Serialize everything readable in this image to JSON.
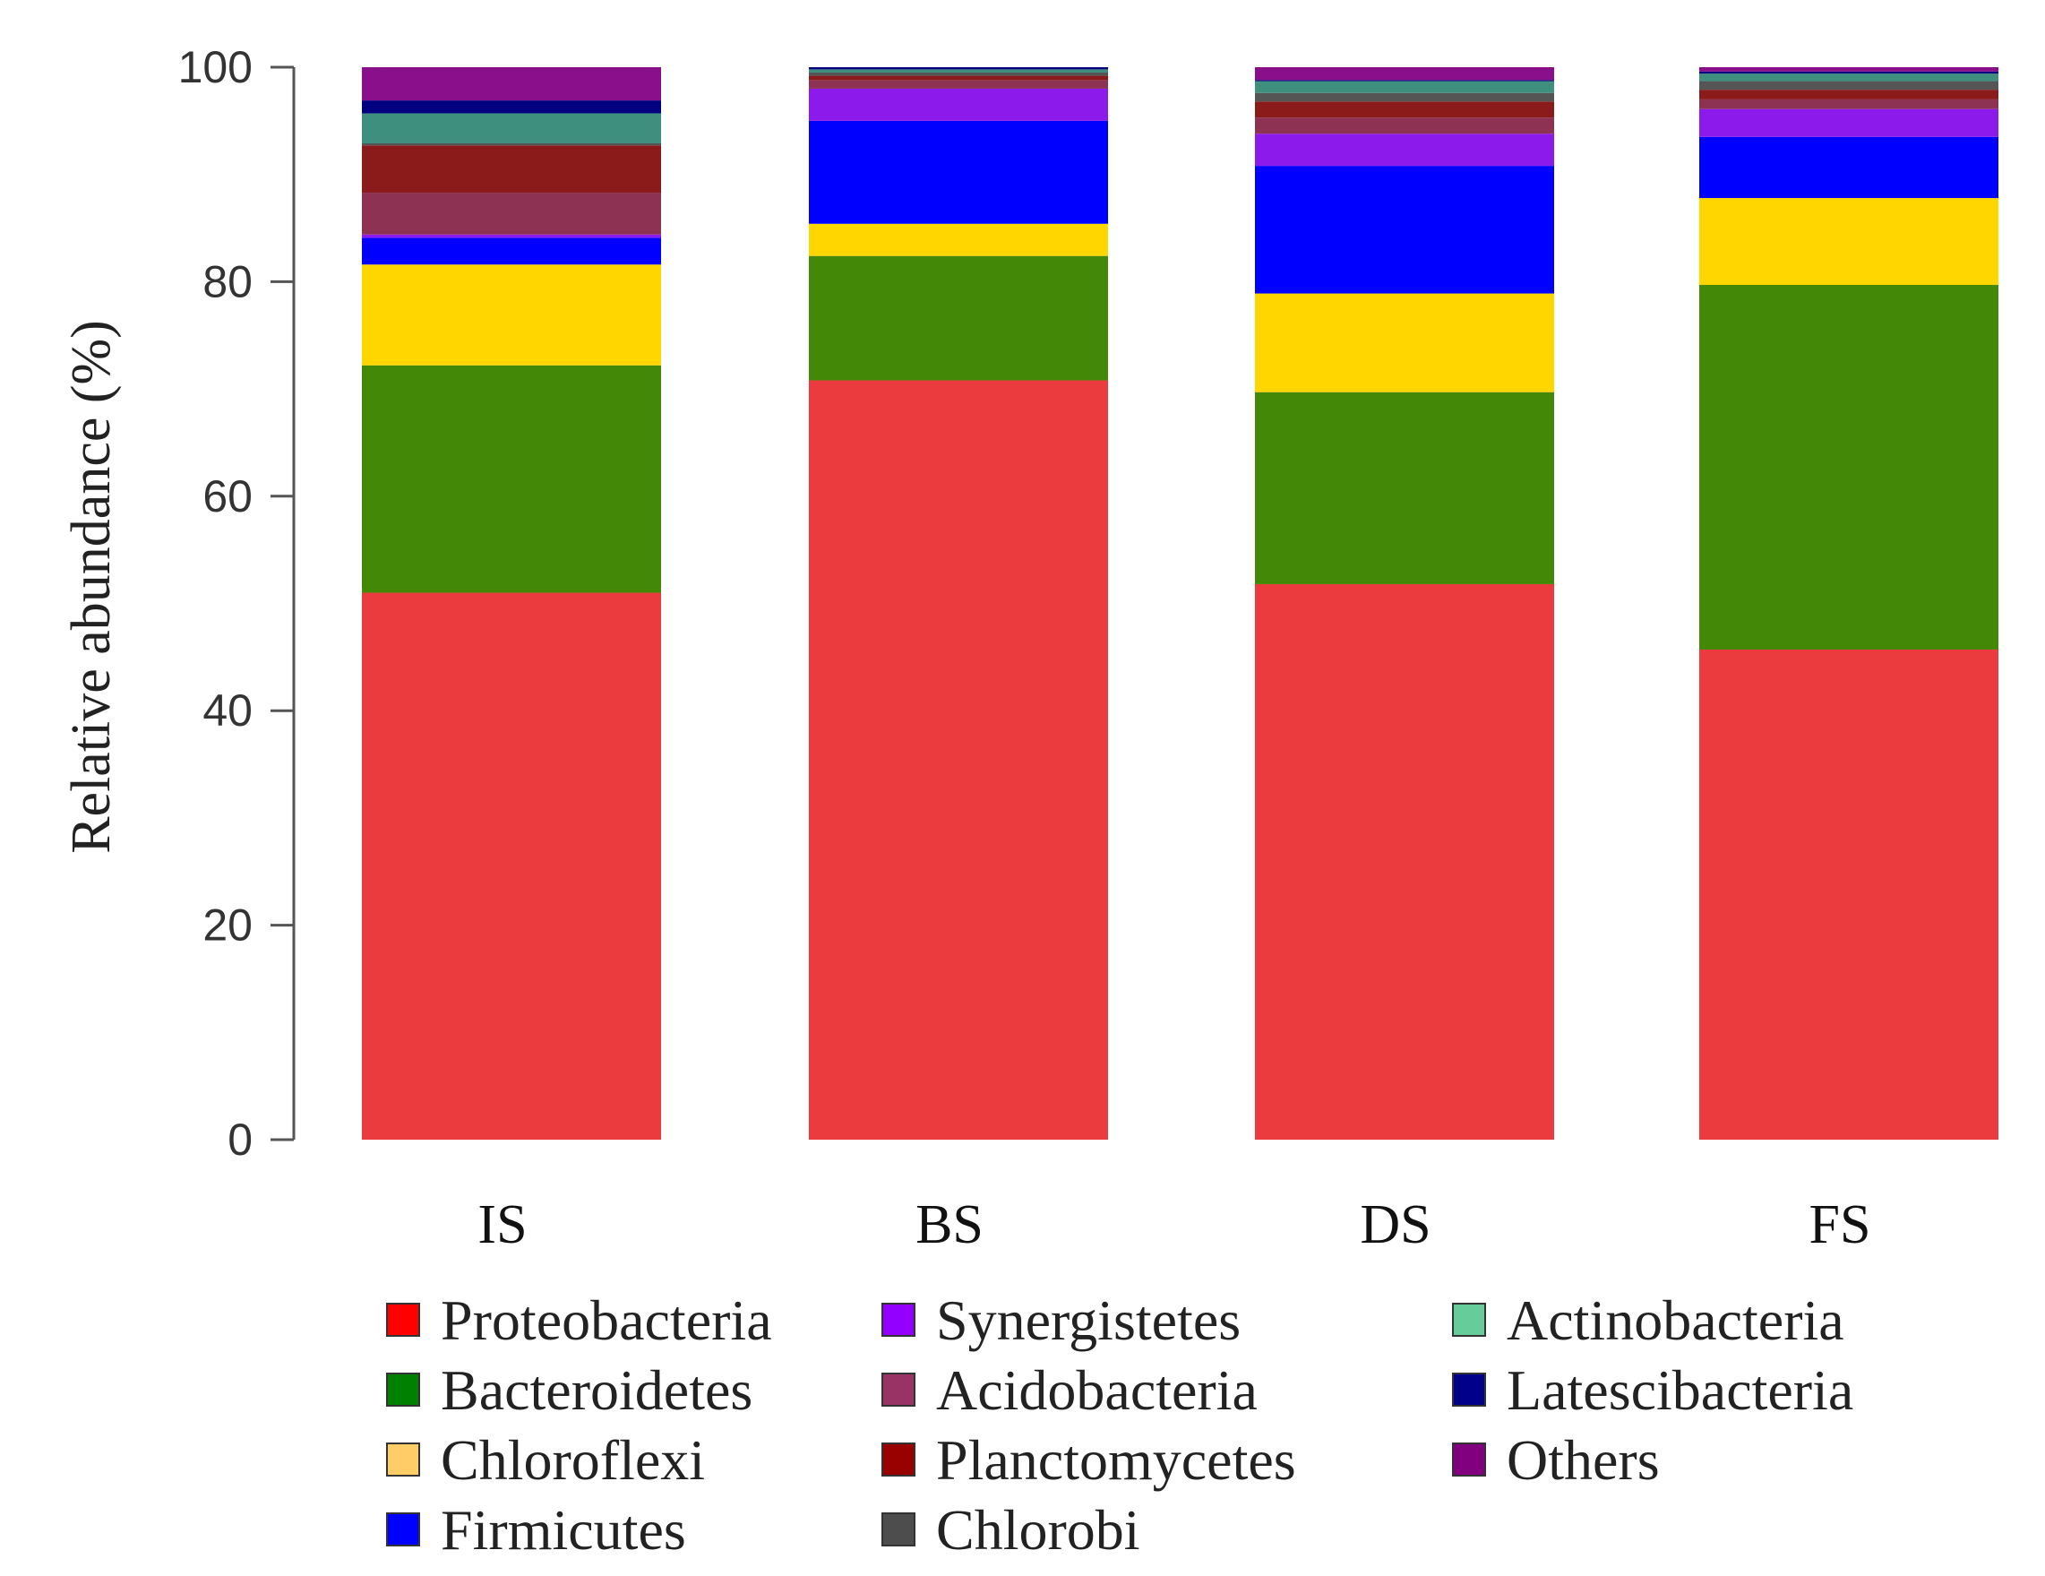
{
  "chart_data": {
    "type": "bar",
    "stacked": true,
    "title": "",
    "xlabel": "",
    "ylabel": "Relative abundance (%)",
    "ylim": [
      0,
      100
    ],
    "yticks": [
      0,
      20,
      40,
      60,
      80,
      100
    ],
    "grid": false,
    "legend_position": "bottom",
    "categories": [
      "IS",
      "BS",
      "DS",
      "FS"
    ],
    "series": [
      {
        "name": "Proteobacteria",
        "color": "#ec3b3e",
        "values": [
          51.0,
          70.8,
          51.8,
          45.7
        ]
      },
      {
        "name": "Bacteroidetes",
        "color": "#438806",
        "values": [
          21.2,
          11.6,
          17.9,
          34.0
        ]
      },
      {
        "name": "Chloroflexi",
        "color": "#ffd600",
        "values": [
          9.4,
          3.0,
          9.2,
          8.1
        ]
      },
      {
        "name": "Firmicutes",
        "color": "#0000ff",
        "values": [
          2.5,
          9.6,
          11.9,
          5.7
        ]
      },
      {
        "name": "Synergistetes",
        "color": "#8c1aeb",
        "values": [
          0.3,
          3.0,
          3.0,
          2.6
        ]
      },
      {
        "name": "Acidobacteria",
        "color": "#8e3254",
        "values": [
          3.9,
          0.8,
          1.5,
          0.9
        ]
      },
      {
        "name": "Planctomycetes",
        "color": "#8b1a1a",
        "values": [
          4.4,
          0.4,
          1.5,
          0.9
        ]
      },
      {
        "name": "Chlorobi",
        "color": "#555555",
        "values": [
          0.2,
          0.3,
          0.8,
          0.8
        ]
      },
      {
        "name": "Actinobacteria",
        "color": "#3f8f7f",
        "values": [
          2.8,
          0.3,
          1.1,
          0.7
        ]
      },
      {
        "name": "Latescibacteria",
        "color": "#000080",
        "values": [
          1.2,
          0.2,
          0.1,
          0.2
        ]
      },
      {
        "name": "Others",
        "color": "#8a0f8a",
        "values": [
          3.1,
          0.0,
          1.2,
          0.4
        ]
      }
    ],
    "legend_swatches": [
      {
        "name": "Proteobacteria",
        "color": "#ff0000"
      },
      {
        "name": "Bacteroidetes",
        "color": "#008000"
      },
      {
        "name": "Chloroflexi",
        "color": "#ffcc66"
      },
      {
        "name": "Firmicutes",
        "color": "#0000ff"
      },
      {
        "name": "Synergistetes",
        "color": "#9400ff"
      },
      {
        "name": "Acidobacteria",
        "color": "#993366"
      },
      {
        "name": "Planctomycetes",
        "color": "#990000"
      },
      {
        "name": "Chlorobi",
        "color": "#4d4d4d"
      },
      {
        "name": "Actinobacteria",
        "color": "#66cc99"
      },
      {
        "name": "Latescibacteria",
        "color": "#00008b"
      },
      {
        "name": "Others",
        "color": "#800080"
      }
    ]
  }
}
